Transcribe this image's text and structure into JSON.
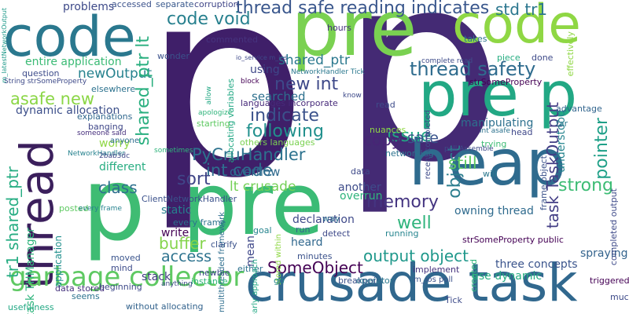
{
  "words": [
    {
      "text": "p",
      "color": "#3f1f69"
    },
    {
      "text": "p",
      "color": "#442a74"
    },
    {
      "text": "pre",
      "color": "#7ad151"
    },
    {
      "text": "pre",
      "color": "#3bbb75"
    },
    {
      "text": "code",
      "color": "#8fd744"
    },
    {
      "text": "code",
      "color": "#2a788e"
    },
    {
      "text": "pre p",
      "color": "#22a884"
    },
    {
      "text": "crusade task",
      "color": "#31688e"
    },
    {
      "text": "heap",
      "color": "#2f6b8e"
    },
    {
      "text": "thread",
      "color": "#3b1f5c"
    },
    {
      "text": "p",
      "color": "#3fbc73"
    },
    {
      "text": "garbage collector",
      "color": "#5ec962"
    },
    {
      "text": "thread safe reading indicates",
      "color": "#39568c"
    },
    {
      "text": "std tr1",
      "color": "#2a768e"
    },
    {
      "text": "code void",
      "color": "#27808e"
    },
    {
      "text": "problems",
      "color": "#3e4a89"
    },
    {
      "text": "thread safety",
      "color": "#2f6c8e"
    },
    {
      "text": "shared_ptr",
      "color": "#2a788e"
    },
    {
      "text": "newOutput",
      "color": "#26828e"
    },
    {
      "text": "new int",
      "color": "#3e4989"
    },
    {
      "text": "shared_ptr lt",
      "color": "#29af7f"
    },
    {
      "text": "asafe new",
      "color": "#8bd646"
    },
    {
      "text": "indicate",
      "color": "#3b528b"
    },
    {
      "text": "following",
      "color": "#21908d"
    },
    {
      "text": "PyCruHandler",
      "color": "#2c728e"
    },
    {
      "text": "int code",
      "color": "#2e6e8e"
    },
    {
      "text": "lt crusade",
      "color": "#73d056"
    },
    {
      "text": "issue",
      "color": "#22a785"
    },
    {
      "text": "copy",
      "color": "#482576"
    },
    {
      "text": "safe",
      "color": "#3a548c"
    },
    {
      "text": "memory",
      "color": "#453581"
    },
    {
      "text": "well",
      "color": "#2fb47c"
    },
    {
      "text": "object",
      "color": "#2c7e8e"
    },
    {
      "text": "pointer",
      "color": "#1fa088"
    },
    {
      "text": "strong",
      "color": "#3dbc74"
    },
    {
      "text": "task TaskOutput",
      "color": "#433e85"
    },
    {
      "text": "manipulating",
      "color": "#2d708e"
    },
    {
      "text": "understood",
      "color": "#25848e"
    },
    {
      "text": "still",
      "color": "#5ec962"
    },
    {
      "text": "class",
      "color": "#2e6f8e"
    },
    {
      "text": "sort",
      "color": "#404688"
    },
    {
      "text": "overflow",
      "color": "#306a8e"
    },
    {
      "text": "another",
      "color": "#3e4c8a"
    },
    {
      "text": "owning thread",
      "color": "#2f6b8e"
    },
    {
      "text": "different",
      "color": "#27ad81"
    },
    {
      "text": "worry",
      "color": "#8fd744"
    },
    {
      "text": "dynamic allocation",
      "color": "#3c4f8a"
    },
    {
      "text": "entire application",
      "color": "#3bbb75"
    },
    {
      "text": "String strSomeProperty",
      "color": "#3e4a89"
    },
    {
      "text": "m_latestNetworkOutput",
      "color": "#1f9a8a"
    },
    {
      "text": "accessed",
      "color": "#3b528b"
    },
    {
      "text": "separate",
      "color": "#38588c"
    },
    {
      "text": "corruption",
      "color": "#404688"
    },
    {
      "text": "commented",
      "color": "#46337e"
    },
    {
      "text": "using",
      "color": "#3f4788"
    },
    {
      "text": "searched",
      "color": "#2d708e"
    },
    {
      "text": "buffer",
      "color": "#84d44b"
    },
    {
      "text": "static",
      "color": "#26818e"
    },
    {
      "text": "write",
      "color": "#440154"
    },
    {
      "text": "access",
      "color": "#2c728e"
    },
    {
      "text": "stack",
      "color": "#433d84"
    },
    {
      "text": "heard",
      "color": "#31688e"
    },
    {
      "text": "SomeObject",
      "color": "#440154"
    },
    {
      "text": "mean",
      "color": "#3f4889"
    },
    {
      "text": "declaration",
      "color": "#3e4989"
    },
    {
      "text": "output object",
      "color": "#1f988b"
    },
    {
      "text": "three concepts",
      "color": "#3a548c"
    },
    {
      "text": "use dynamic",
      "color": "#26ad81"
    },
    {
      "text": "spraying",
      "color": "#33638d"
    },
    {
      "text": "tr1 shared_ptr",
      "color": "#25ac82"
    },
    {
      "text": "task THManager",
      "color": "#2fb47c"
    },
    {
      "text": "NetworkHandler",
      "color": "#26828e"
    },
    {
      "text": "someone said",
      "color": "#472f7d"
    },
    {
      "text": "2bab3dc",
      "color": "#3f4788"
    },
    {
      "text": "application",
      "color": "#21908d"
    },
    {
      "text": "without allocating",
      "color": "#33638d"
    },
    {
      "text": "multithreaded framework",
      "color": "#2e6e8e"
    },
    {
      "text": "allocating variables",
      "color": "#22a884"
    },
    {
      "text": "languages incorporate",
      "color": "#472a7a"
    },
    {
      "text": "others languages",
      "color": "#7ad151"
    },
    {
      "text": "overrun",
      "color": "#2fb47c"
    },
    {
      "text": "advantage",
      "color": "#32658e"
    },
    {
      "text": "far",
      "color": "#2a788e"
    },
    {
      "text": "read",
      "color": "#3e4c8a"
    },
    {
      "text": "head",
      "color": "#3f4889"
    },
    {
      "text": "trying",
      "color": "#3dbc74"
    },
    {
      "text": "nuances",
      "color": "#8fd744"
    },
    {
      "text": "networking",
      "color": "#2c728e"
    },
    {
      "text": "done",
      "color": "#3e4a89"
    },
    {
      "text": "takes",
      "color": "#2c738e"
    },
    {
      "text": "piece",
      "color": "#26ad81"
    },
    {
      "text": "hours",
      "color": "#46327e"
    },
    {
      "text": "wonder",
      "color": "#3b528b"
    },
    {
      "text": "question",
      "color": "#3e4c8a"
    },
    {
      "text": "elsewhere",
      "color": "#2c728e"
    },
    {
      "text": "banging",
      "color": "#3f4788"
    },
    {
      "text": "anyone",
      "color": "#2e6e8e"
    },
    {
      "text": "explanations",
      "color": "#31688e"
    },
    {
      "text": "ClientNetworkHandler",
      "color": "#3b518b"
    },
    {
      "text": "every frame",
      "color": "#2c728e"
    },
    {
      "text": "posted",
      "color": "#5ec962"
    },
    {
      "text": "clarify",
      "color": "#3b528b"
    },
    {
      "text": "goal",
      "color": "#25848e"
    },
    {
      "text": "run",
      "color": "#33638d"
    },
    {
      "text": "way",
      "color": "#2e6e8e"
    },
    {
      "text": "detect",
      "color": "#3e4989"
    },
    {
      "text": "running",
      "color": "#25848e"
    },
    {
      "text": "minutes",
      "color": "#3b528b"
    },
    {
      "text": "breakpoint",
      "color": "#3b518b"
    },
    {
      "text": "either",
      "color": "#2d718e"
    },
    {
      "text": "moved",
      "color": "#3a548c"
    },
    {
      "text": "mind",
      "color": "#3e4c8a"
    },
    {
      "text": "newbie",
      "color": "#3e4989"
    },
    {
      "text": "instance",
      "color": "#2fb47c"
    },
    {
      "text": "beginning",
      "color": "#3e4a89"
    },
    {
      "text": "seems",
      "color": "#2c738e"
    },
    {
      "text": "data stored",
      "color": "#46337e"
    },
    {
      "text": "usefulness",
      "color": "#22a884"
    },
    {
      "text": "Tick",
      "color": "#3e4c8a"
    },
    {
      "text": "much",
      "color": "#3e4a89"
    },
    {
      "text": "triggered",
      "color": "#440154"
    },
    {
      "text": "stored within",
      "color": "#8fd744"
    },
    {
      "text": "m_ios poll",
      "color": "#3b528b"
    },
    {
      "text": "implement",
      "color": "#46337e"
    },
    {
      "text": "operator",
      "color": "#2a788e"
    },
    {
      "text": "go",
      "color": "#25848e"
    },
    {
      "text": "early approach",
      "color": "#22a884"
    },
    {
      "text": "created",
      "color": "#2fb47c"
    },
    {
      "text": "completed output",
      "color": "#3e4a89"
    },
    {
      "text": "strSomeProperty public",
      "color": "#440154"
    },
    {
      "text": "complete read",
      "color": "#3e4c8a"
    },
    {
      "text": "data",
      "color": "#3e4989"
    },
    {
      "text": "frame object",
      "color": "#3b528b"
    },
    {
      "text": "will",
      "color": "#2a788e"
    },
    {
      "text": "every frame",
      "color": "#26828e"
    },
    {
      "text": "strSomeProperty",
      "color": "#440154"
    },
    {
      "text": "allow",
      "color": "#22a884"
    },
    {
      "text": "block",
      "color": "#440154"
    },
    {
      "text": "know",
      "color": "#3e4a89"
    },
    {
      "text": "starting",
      "color": "#5ec962"
    },
    {
      "text": "apologize",
      "color": "#2fb47c"
    },
    {
      "text": "recent completed",
      "color": "#3e4a89"
    },
    {
      "text": "effectively",
      "color": "#8fd744"
    },
    {
      "text": "sometimes",
      "color": "#2fb47c"
    },
    {
      "text": "poll Assemble",
      "color": "#3e4a89"
    },
    {
      "text": "int asafe",
      "color": "#2c728e"
    },
    {
      "text": "anything",
      "color": "#3e4c8a"
    },
    {
      "text": "NetworkHandler Tick",
      "color": "#2a788e"
    },
    {
      "text": "io_service m_ios",
      "color": "#3e4989"
    }
  ]
}
